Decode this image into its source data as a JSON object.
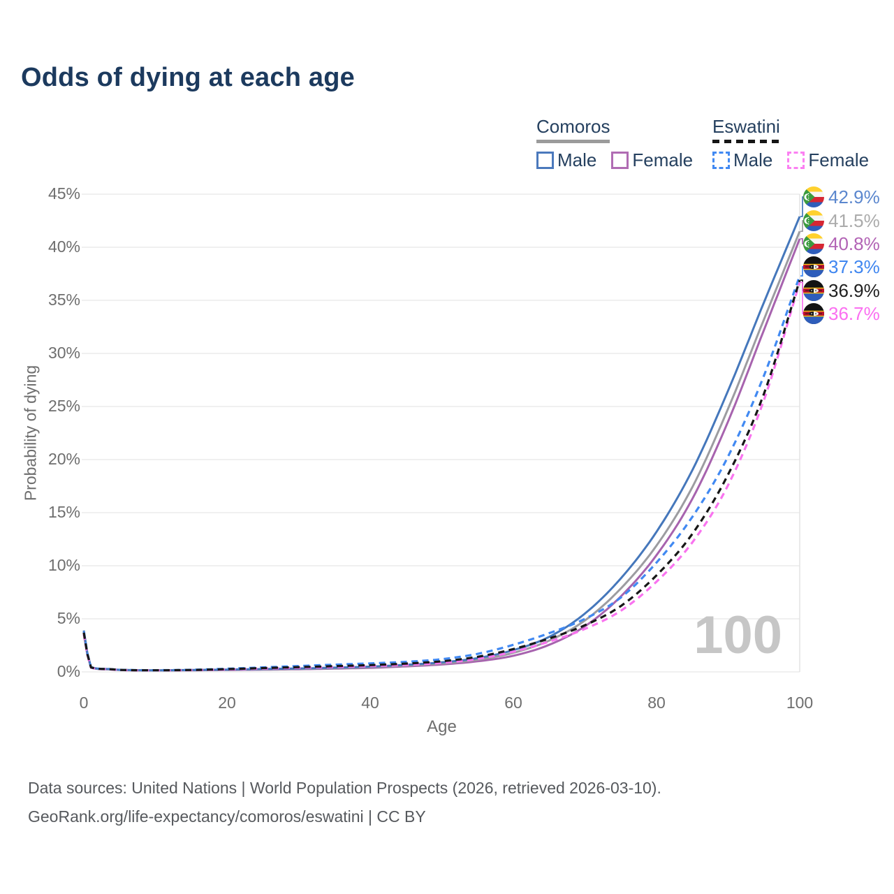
{
  "title": "Odds of dying at each age",
  "legend": {
    "comoros": {
      "name": "Comoros",
      "male": "Male",
      "female": "Female"
    },
    "eswatini": {
      "name": "Eswatini",
      "male": "Male",
      "female": "Female"
    }
  },
  "footer": {
    "line1": "Data sources: United Nations | World Population Prospects (2026, retrieved 2026-03-10).",
    "line2": "GeoRank.org/life-expectancy/comoros/eswatini | CC BY"
  },
  "chart_data": {
    "type": "line",
    "title": "Odds of dying at each age",
    "xlabel": "Age",
    "ylabel": "Probability of dying",
    "xlim": [
      0,
      100
    ],
    "ylim": [
      0,
      45
    ],
    "x_ticks": [
      "0",
      "20",
      "40",
      "60",
      "80",
      "100"
    ],
    "y_ticks": [
      "0%",
      "5%",
      "10%",
      "15%",
      "20%",
      "25%",
      "30%",
      "35%",
      "40%",
      "45%"
    ],
    "grid": "horizontal",
    "legend_position": "top-right",
    "watermark": "100",
    "x": [
      0,
      1,
      3,
      5,
      10,
      15,
      20,
      25,
      30,
      35,
      40,
      45,
      50,
      55,
      60,
      65,
      70,
      75,
      80,
      85,
      90,
      95,
      100
    ],
    "series": [
      {
        "key": "comoros-male",
        "name": "Comoros Male",
        "color": "#4577bb",
        "dashed": false,
        "end_value_pct": 42.9,
        "values": [
          3.9,
          0.45,
          0.28,
          0.2,
          0.15,
          0.18,
          0.22,
          0.27,
          0.32,
          0.4,
          0.5,
          0.67,
          0.9,
          1.3,
          2.05,
          3.3,
          5.5,
          8.8,
          13.2,
          19.0,
          26.5,
          34.8,
          42.9
        ]
      },
      {
        "key": "comoros-both",
        "name": "Comoros Both sexes",
        "color": "#9c9ca0",
        "dashed": false,
        "end_value_pct": 41.5,
        "values": [
          3.7,
          0.42,
          0.26,
          0.19,
          0.14,
          0.17,
          0.2,
          0.24,
          0.28,
          0.35,
          0.44,
          0.6,
          0.8,
          1.15,
          1.8,
          2.95,
          4.85,
          7.85,
          11.9,
          17.4,
          24.8,
          33.2,
          41.5
        ]
      },
      {
        "key": "comoros-female",
        "name": "Comoros Female",
        "color": "#a763ae",
        "dashed": false,
        "end_value_pct": 40.8,
        "values": [
          3.5,
          0.4,
          0.25,
          0.18,
          0.13,
          0.15,
          0.18,
          0.21,
          0.25,
          0.31,
          0.38,
          0.52,
          0.7,
          1.0,
          1.52,
          2.55,
          4.3,
          7.1,
          11.0,
          16.3,
          23.6,
          32.2,
          40.8
        ]
      },
      {
        "key": "eswatini-male",
        "name": "Eswatini Male",
        "color": "#4189f2",
        "dashed": true,
        "end_value_pct": 37.3,
        "values": [
          3.8,
          0.44,
          0.28,
          0.2,
          0.16,
          0.2,
          0.3,
          0.42,
          0.55,
          0.68,
          0.8,
          0.95,
          1.2,
          1.7,
          2.55,
          3.65,
          5.0,
          7.0,
          10.3,
          14.6,
          20.3,
          27.9,
          37.3
        ]
      },
      {
        "key": "eswatini-both",
        "name": "Eswatini Both sexes",
        "color": "#171717",
        "dashed": true,
        "end_value_pct": 36.9,
        "values": [
          3.7,
          0.42,
          0.27,
          0.19,
          0.15,
          0.18,
          0.26,
          0.36,
          0.45,
          0.54,
          0.64,
          0.78,
          1.0,
          1.42,
          2.15,
          3.15,
          4.4,
          6.2,
          9.1,
          13.0,
          18.6,
          26.2,
          36.9
        ]
      },
      {
        "key": "eswatini-female",
        "name": "Eswatini Female",
        "color": "#f973ef",
        "dashed": true,
        "end_value_pct": 36.7,
        "values": [
          3.6,
          0.4,
          0.26,
          0.18,
          0.14,
          0.17,
          0.23,
          0.31,
          0.38,
          0.45,
          0.54,
          0.66,
          0.85,
          1.22,
          1.9,
          2.85,
          4.05,
          5.75,
          8.5,
          12.2,
          17.6,
          25.6,
          36.7
        ]
      }
    ],
    "end_labels": [
      {
        "value": "42.9%",
        "color": "#5b87ce",
        "flag_icon": "comoros-flag-icon",
        "country": "comoros"
      },
      {
        "value": "41.5%",
        "color": "#ababab",
        "flag_icon": "comoros-flag-icon",
        "country": "comoros"
      },
      {
        "value": "40.8%",
        "color": "#b263b5",
        "flag_icon": "comoros-flag-icon",
        "country": "comoros"
      },
      {
        "value": "37.3%",
        "color": "#3f86f0",
        "flag_icon": "eswatini-flag-icon",
        "country": "eswatini"
      },
      {
        "value": "36.9%",
        "color": "#1f1f1f",
        "flag_icon": "eswatini-flag-icon",
        "country": "eswatini"
      },
      {
        "value": "36.7%",
        "color": "#fb6ff1",
        "flag_icon": "eswatini-flag-icon",
        "country": "eswatini"
      }
    ],
    "colors": {
      "grid": "#ececec",
      "crosshair": "#e3e3e3",
      "axis_text": "#6e6e6e",
      "title_text": "#1c3a5e",
      "footer_text": "#56595d",
      "watermark_text": "#c6c6c6"
    }
  }
}
